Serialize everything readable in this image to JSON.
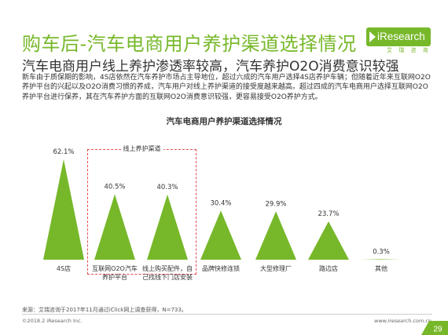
{
  "header": {
    "title": "购车后-汽车电商用户养护渠道选择情况",
    "subtitle": "汽车电商用户线上养护渗透率较高，汽车养护O2O消费意识较强",
    "description": "新车由于质保期的影响，4S店依然在汽车养护市场占主导地位，超过六成的汽车用户选择4S店养护车辆；但随着近年来互联网O2O养护平台的兴起以及O2O消费习惯的养成，汽车用户对线上养护渠道的接受度越来越高。超过四成的汽车电商用户选择互联网O2O养护平台进行保养，其在汽车养护方面的互联网O2O消费意识较强，更容易接受O2O养护方式。"
  },
  "logo": {
    "name": "iResearch",
    "sub": "艾 瑞 咨 询"
  },
  "group_label": "线上养护渠道",
  "chart_data": {
    "type": "bar",
    "title": "汽车电商用户养护渠道选择情况",
    "categories": [
      "4S店",
      "互联网O2O汽车养护平台",
      "线上购买配件，自己找线下门店安装",
      "品牌快修连锁",
      "大型修理厂",
      "路边店",
      "其他"
    ],
    "label_lines": [
      [
        "4S店"
      ],
      [
        "互联网O2O汽车",
        "养护平台"
      ],
      [
        "线上购买配件，自",
        "己找线下门店安装"
      ],
      [
        "品牌快修连锁"
      ],
      [
        "大型修理厂"
      ],
      [
        "路边店"
      ],
      [
        "其他"
      ]
    ],
    "values": [
      62.1,
      40.5,
      40.3,
      30.4,
      29.9,
      23.7,
      0.3
    ],
    "value_labels": [
      "62.1%",
      "40.5%",
      "40.3%",
      "30.4%",
      "29.9%",
      "23.7%",
      "0.3%"
    ],
    "ylim": [
      0,
      70
    ],
    "unit": "%",
    "grid": false,
    "color": "#77b82a"
  },
  "footer": {
    "source": "来源：艾瑞咨询于2017年11月通过iClick网上调查获得，N=733。",
    "copyright": "©2018.2  iResearch Inc.",
    "website": "www.iresearch.com.cn",
    "page": "29"
  }
}
